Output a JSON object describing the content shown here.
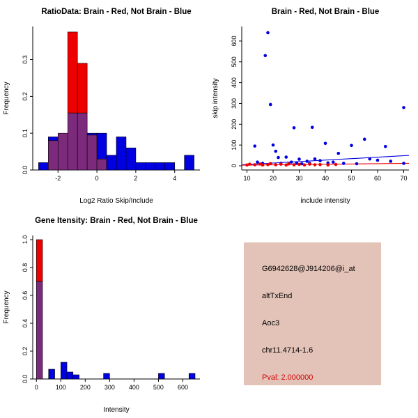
{
  "colors": {
    "red": "#EE0000",
    "blue": "#0000E0",
    "overlap": "#7C2A7C",
    "axis": "#000000"
  },
  "info_box": {
    "bg_color": "#E3C3B8",
    "lines": [
      {
        "text": "G6942628@J914206@i_at",
        "color": "#000000"
      },
      {
        "text": "altTxEnd",
        "color": "#000000"
      },
      {
        "text": "Aoc3",
        "color": "#000000"
      },
      {
        "text": "chr11.4714-1.6",
        "color": "#000000"
      },
      {
        "text": "Pval: 2.000000",
        "color": "#D40000"
      }
    ]
  },
  "chart_data": [
    {
      "type": "bar",
      "subtype": "overlaid-histogram",
      "title": "RatioData: Brain - Red, Not Brain - Blue",
      "xlabel": "Log2 Ratio Skip/Include",
      "ylabel": "Frequency",
      "xlim": [
        -3.3,
        5.3
      ],
      "ylim": [
        0,
        0.39
      ],
      "xtick_vals": [
        -2,
        0,
        2,
        4
      ],
      "xtick_labels": [
        "-2",
        "0",
        "2",
        "4"
      ],
      "ytick_vals": [
        0,
        0.1,
        0.2,
        0.3
      ],
      "ytick_labels": [
        "0.0",
        "0.1",
        "0.2",
        "0.3"
      ],
      "bin_width": 0.5,
      "bin_starts": [
        -3,
        -2.5,
        -2,
        -1.5,
        -1,
        -0.5,
        0,
        0.5,
        1,
        1.5,
        2,
        2.5,
        3,
        3.5,
        4,
        4.5
      ],
      "series": [
        {
          "name": "Not Brain",
          "color": "blue",
          "values": [
            0.02,
            0.09,
            0.1,
            0.155,
            0.155,
            0.1,
            0.1,
            0.04,
            0.09,
            0.06,
            0.02,
            0.02,
            0.02,
            0.02,
            0,
            0.04
          ]
        },
        {
          "name": "Brain",
          "color": "red",
          "values": [
            0,
            0.08,
            0.1,
            0.375,
            0.29,
            0.095,
            0.03,
            0,
            0,
            0,
            0,
            0,
            0,
            0,
            0,
            0
          ]
        }
      ],
      "legend": "Brain - Red, Not Brain - Blue",
      "grid": false
    },
    {
      "type": "scatter",
      "title": "Brain - Red, Not Brain - Blue",
      "xlabel": "include intensity",
      "ylabel": "skip intensity",
      "xlim": [
        8,
        72
      ],
      "ylim": [
        -20,
        670
      ],
      "xtick_vals": [
        10,
        20,
        30,
        40,
        50,
        60,
        70
      ],
      "xtick_labels": [
        "10",
        "20",
        "30",
        "40",
        "50",
        "60",
        "70"
      ],
      "ytick_vals": [
        0,
        100,
        200,
        300,
        400,
        500,
        600
      ],
      "ytick_labels": [
        "0",
        "100",
        "200",
        "300",
        "400",
        "500",
        "600"
      ],
      "series": [
        {
          "name": "Not Brain",
          "color": "blue",
          "points": [
            [
              13,
              95
            ],
            [
              14,
              18
            ],
            [
              16,
              12
            ],
            [
              17,
              530
            ],
            [
              18,
              640
            ],
            [
              19,
              295
            ],
            [
              20,
              100
            ],
            [
              21,
              70
            ],
            [
              22,
              40
            ],
            [
              23,
              12
            ],
            [
              25,
              42
            ],
            [
              26,
              10
            ],
            [
              27,
              18
            ],
            [
              28,
              183
            ],
            [
              29,
              14
            ],
            [
              30,
              32
            ],
            [
              31,
              10
            ],
            [
              33,
              22
            ],
            [
              34,
              12
            ],
            [
              35,
              185
            ],
            [
              36,
              33
            ],
            [
              38,
              25
            ],
            [
              40,
              108
            ],
            [
              41,
              14
            ],
            [
              43,
              18
            ],
            [
              45,
              60
            ],
            [
              47,
              12
            ],
            [
              50,
              98
            ],
            [
              52,
              10
            ],
            [
              55,
              128
            ],
            [
              57,
              33
            ],
            [
              60,
              27
            ],
            [
              63,
              93
            ],
            [
              65,
              22
            ],
            [
              70,
              280
            ],
            [
              70,
              12
            ]
          ]
        },
        {
          "name": "Brain",
          "color": "red",
          "points": [
            [
              10,
              4
            ],
            [
              11,
              8
            ],
            [
              13,
              5
            ],
            [
              15,
              9
            ],
            [
              16,
              4
            ],
            [
              18,
              6
            ],
            [
              19,
              11
            ],
            [
              21,
              5
            ],
            [
              23,
              8
            ],
            [
              25,
              4
            ],
            [
              26,
              9
            ],
            [
              28,
              5
            ],
            [
              30,
              7
            ],
            [
              32,
              4
            ],
            [
              34,
              8
            ],
            [
              36,
              5
            ],
            [
              38,
              6
            ],
            [
              41,
              4
            ],
            [
              44,
              7
            ]
          ]
        }
      ],
      "fit_lines": [
        {
          "color": "blue",
          "from": [
            8,
            5
          ],
          "to": [
            72,
            50
          ]
        },
        {
          "color": "red",
          "from": [
            8,
            3
          ],
          "to": [
            72,
            12
          ]
        }
      ],
      "grid": false
    },
    {
      "type": "bar",
      "subtype": "overlaid-histogram",
      "title": "Gene Itensity: Brain - Red, Not Brain - Blue",
      "xlabel": "Intensity",
      "ylabel": "Frequency",
      "xlim": [
        -15,
        670
      ],
      "ylim": [
        0,
        1.03
      ],
      "xtick_vals": [
        0,
        100,
        200,
        300,
        400,
        500,
        600
      ],
      "xtick_labels": [
        "0",
        "100",
        "200",
        "300",
        "400",
        "500",
        "600"
      ],
      "ytick_vals": [
        0,
        0.2,
        0.4,
        0.6,
        0.8,
        1.0
      ],
      "ytick_labels": [
        "0.0",
        "0.2",
        "0.4",
        "0.6",
        "0.8",
        "1.0"
      ],
      "bin_width": 25,
      "bin_starts": [
        0,
        50,
        100,
        125,
        150,
        275,
        500,
        625
      ],
      "series": [
        {
          "name": "Not Brain",
          "color": "blue",
          "values": [
            0.7,
            0.07,
            0.12,
            0.05,
            0.03,
            0.04,
            0.04,
            0.04
          ]
        },
        {
          "name": "Brain",
          "color": "red",
          "values": [
            1.0,
            0,
            0,
            0,
            0,
            0,
            0,
            0
          ]
        }
      ],
      "legend": "Brain - Red, Not Brain - Blue",
      "grid": false
    }
  ]
}
